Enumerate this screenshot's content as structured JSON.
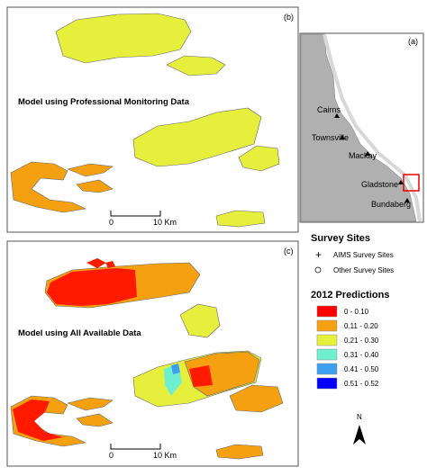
{
  "panel_b": {
    "label": "(b)",
    "title": "Model using Professional Monitoring Data",
    "scale": [
      "0",
      "10 Km"
    ]
  },
  "panel_a": {
    "label": "(a)",
    "places": [
      "Cairns",
      "Townsville",
      "Mackay",
      "Gladstone",
      "Bundaberg"
    ]
  },
  "panel_c": {
    "label": "(c)",
    "title": "Model using All Available Data",
    "scale": [
      "0",
      "10 Km"
    ]
  },
  "legend": {
    "survey_title": "Survey Sites",
    "survey_items": [
      "AIMS Survey Sites",
      "Other Survey Sites"
    ],
    "predictions_title": "2012 Predictions",
    "prediction_items": [
      {
        "label": "0 - 0.10",
        "color": "#ff0000"
      },
      {
        "label": "0.11 - 0.20",
        "color": "#f5a010"
      },
      {
        "label": "0.21 - 0.30",
        "color": "#e6f03c"
      },
      {
        "label": "0.31 - 0.40",
        "color": "#6eefd0"
      },
      {
        "label": "0.41 - 0.50",
        "color": "#3c9ff0"
      },
      {
        "label": "0.51 - 0.52",
        "color": "#0000ff"
      }
    ]
  },
  "north": "N"
}
